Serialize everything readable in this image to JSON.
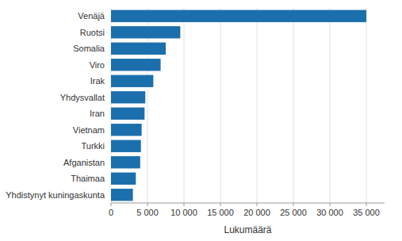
{
  "chart_data": {
    "type": "bar",
    "orientation": "horizontal",
    "categories": [
      "Yhdistynyt kuningaskunta",
      "Thaimaa",
      "Afganistan",
      "Turkki",
      "Vietnam",
      "Iran",
      "Yhdysvallat",
      "Irak",
      "Viro",
      "Somalia",
      "Ruotsi",
      "Venäjä"
    ],
    "values": [
      3000,
      3400,
      4000,
      4100,
      4200,
      4600,
      4700,
      5800,
      6800,
      7500,
      9500,
      35000
    ],
    "color": "#1c6fad",
    "xlabel": "Lukumäärä",
    "xlim": [
      0,
      37500
    ],
    "xticks": [
      0,
      {
        "value": 5000,
        "label": "5 000"
      },
      {
        "value": 10000,
        "label": "10 000"
      },
      {
        "value": 15000,
        "label": "15 000"
      },
      {
        "value": 20000,
        "label": "20 000"
      },
      {
        "value": 25000,
        "label": "25 000"
      },
      {
        "value": 30000,
        "label": "30 000"
      },
      {
        "value": 35000,
        "label": "35 000"
      }
    ],
    "grid": true
  }
}
